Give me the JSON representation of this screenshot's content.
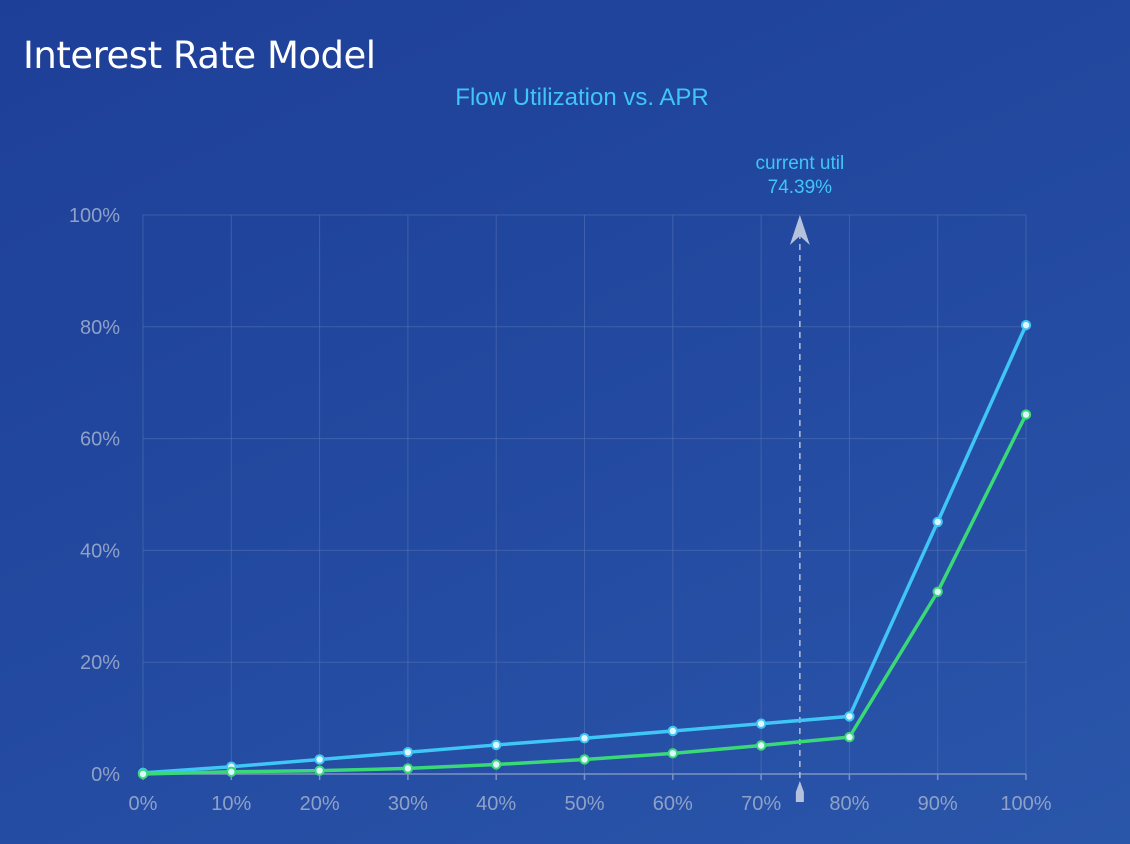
{
  "page": {
    "title": "Interest Rate Model"
  },
  "chart_data": {
    "type": "line",
    "title": "Flow Utilization vs. APR",
    "xlabel": "",
    "ylabel": "",
    "x": [
      0,
      10,
      20,
      30,
      40,
      50,
      60,
      70,
      80,
      90,
      100
    ],
    "x_tick_labels": [
      "0%",
      "10%",
      "20%",
      "30%",
      "40%",
      "50%",
      "60%",
      "70%",
      "80%",
      "90%",
      "100%"
    ],
    "y_ticks": [
      0,
      20,
      40,
      60,
      80,
      100
    ],
    "y_tick_labels": [
      "0%",
      "20%",
      "40%",
      "60%",
      "80%",
      "100%"
    ],
    "xlim": [
      0,
      100
    ],
    "ylim": [
      0,
      100
    ],
    "grid": true,
    "legend": "none",
    "series": [
      {
        "color": "#3fc6f6",
        "values": [
          0.2,
          1.3,
          2.6,
          3.9,
          5.2,
          6.4,
          7.7,
          9.0,
          10.3,
          45.1,
          80.3
        ]
      },
      {
        "color": "#3ad977",
        "values": [
          0,
          0.4,
          0.6,
          1.0,
          1.7,
          2.6,
          3.7,
          5.1,
          6.6,
          32.6,
          64.3
        ]
      }
    ],
    "marker": {
      "x": 74.39,
      "label_line1": "current util",
      "label_line2": "74.39%"
    }
  }
}
